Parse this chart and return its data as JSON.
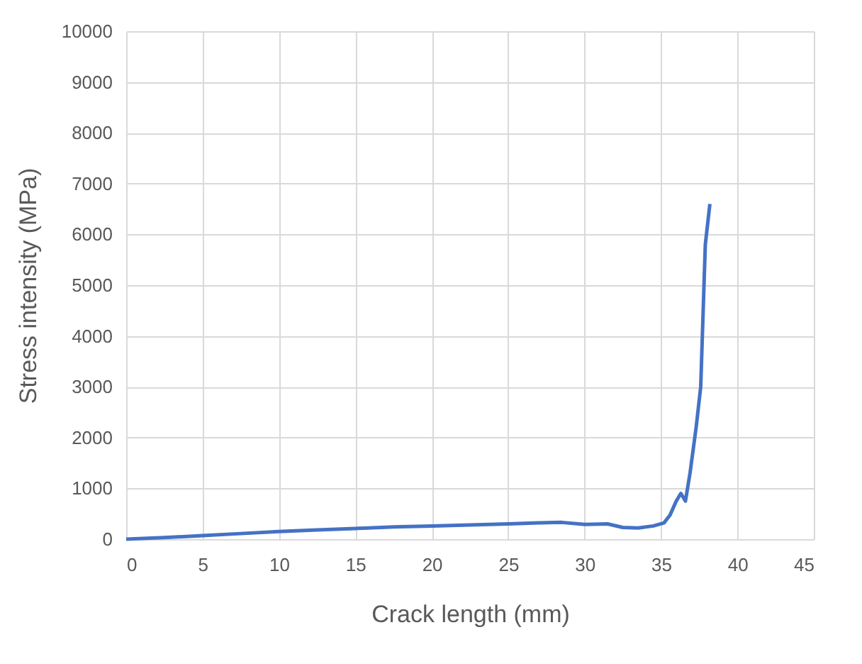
{
  "chart_data": {
    "type": "line",
    "xlabel": "Crack length (mm)",
    "ylabel": "Stress intensity (MPa)",
    "x": [
      0,
      2.5,
      5,
      7.5,
      10,
      12.5,
      15,
      17.5,
      20,
      22.5,
      25,
      27,
      28.5,
      30,
      31.5,
      32.5,
      33.5,
      34.5,
      35.2,
      35.6,
      36,
      36.3,
      36.6,
      36.9,
      37.3,
      37.6,
      37.9,
      38.2
    ],
    "series": [
      {
        "color": "#4472c4",
        "values": [
          0,
          30,
          70,
          110,
          150,
          180,
          210,
          240,
          260,
          280,
          300,
          320,
          330,
          290,
          300,
          230,
          220,
          260,
          320,
          480,
          750,
          900,
          750,
          1300,
          2200,
          3000,
          5800,
          6600
        ]
      }
    ],
    "xlim": [
      0,
      45
    ],
    "xticks": [
      0,
      5,
      10,
      15,
      20,
      25,
      30,
      35,
      40,
      45
    ],
    "ylim": [
      0,
      10000
    ],
    "yticks": [
      0,
      1000,
      2000,
      3000,
      4000,
      5000,
      6000,
      7000,
      8000,
      9000,
      10000
    ],
    "grid": true,
    "legend": false,
    "marker": "none",
    "line_style": "solid"
  }
}
